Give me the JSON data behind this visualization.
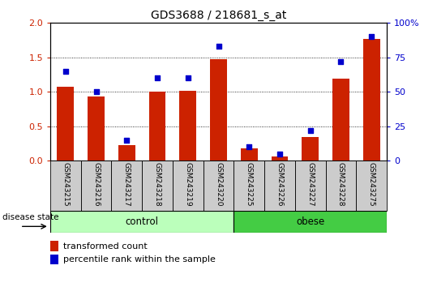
{
  "title": "GDS3688 / 218681_s_at",
  "samples": [
    "GSM243215",
    "GSM243216",
    "GSM243217",
    "GSM243218",
    "GSM243219",
    "GSM243220",
    "GSM243225",
    "GSM243226",
    "GSM243227",
    "GSM243228",
    "GSM243275"
  ],
  "transformed_count": [
    1.07,
    0.93,
    0.23,
    1.0,
    1.02,
    1.47,
    0.18,
    0.06,
    0.35,
    1.19,
    1.77
  ],
  "percentile_rank": [
    65,
    50,
    15,
    60,
    60,
    83,
    10,
    5,
    22,
    72,
    90
  ],
  "ylim_left": [
    0,
    2
  ],
  "ylim_right": [
    0,
    100
  ],
  "yticks_left": [
    0,
    0.5,
    1.0,
    1.5,
    2
  ],
  "yticks_right": [
    0,
    25,
    50,
    75,
    100
  ],
  "bar_color": "#cc2200",
  "dot_color": "#0000cc",
  "control_color": "#bbffbb",
  "obese_color": "#44cc44",
  "control_samples": 6,
  "obese_samples": 5,
  "control_label": "control",
  "obese_label": "obese",
  "disease_state_label": "disease state",
  "legend_bar_label": "transformed count",
  "legend_dot_label": "percentile rank within the sample",
  "background_color": "#ffffff",
  "plot_bg_color": "#cccccc",
  "bar_width": 0.55
}
